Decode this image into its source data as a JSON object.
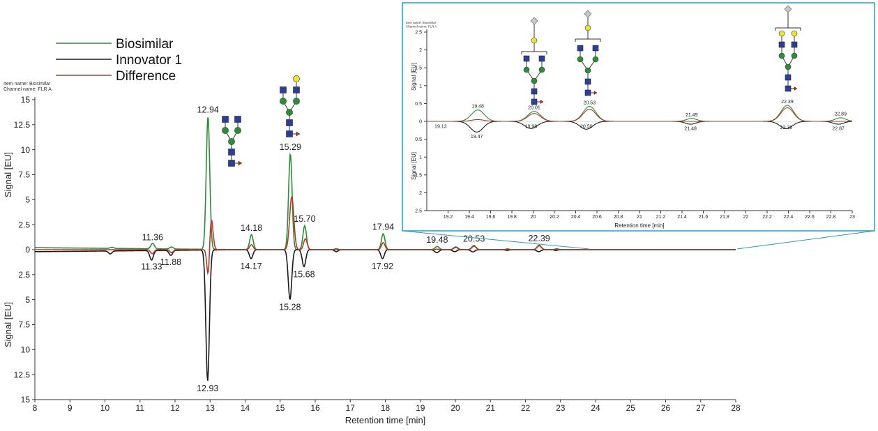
{
  "legend": [
    {
      "label": "Biosimilar",
      "color": "#2e8b3a"
    },
    {
      "label": "Innovator 1",
      "color": "#1a1a1a"
    },
    {
      "label": "Difference",
      "color": "#b23a2a"
    }
  ],
  "colors": {
    "biosimilar": "#2e8b3a",
    "innovator": "#1a1a1a",
    "difference": "#b23a2a",
    "inset_frame": "#2a9ab8",
    "glycan_blue": "#2f3f8f",
    "glycan_green": "#2e8b3a",
    "glycan_yellow": "#f2e03a",
    "glycan_gray": "#c8c8c8",
    "glycan_fucose": "#b0302a"
  },
  "chart_data": [
    {
      "type": "line",
      "header_lines": [
        "Item name: Biosimilar",
        "Channel name: FLR A"
      ],
      "xlabel": "Retention time [min]",
      "ylabel_top": "Signal [EU]",
      "ylabel_bottom": "Signal [EU]",
      "xlim": [
        8,
        28
      ],
      "ylim_top": [
        0,
        15
      ],
      "ylim_bottom": [
        0,
        15
      ],
      "x_ticks": [
        "8",
        "9",
        "10",
        "11",
        "12",
        "13",
        "14",
        "15",
        "16",
        "17",
        "18",
        "19",
        "20",
        "21",
        "22",
        "23",
        "24",
        "25",
        "26",
        "27",
        "28"
      ],
      "y_ticks_top": [
        "0",
        "2.5",
        "5",
        "7.5",
        "10",
        "12.5",
        "15"
      ],
      "y_ticks_bottom": [
        "2.5",
        "5",
        "7.5",
        "10",
        "12.5",
        "15"
      ],
      "series": [
        {
          "name": "Biosimilar",
          "peaks": [
            {
              "x": 10.2,
              "h": 0.12,
              "w": 0.05
            },
            {
              "x": 11.36,
              "h": 0.55,
              "w": 0.05
            },
            {
              "x": 11.9,
              "h": 0.2,
              "w": 0.05
            },
            {
              "x": 12.94,
              "h": 13.3,
              "w": 0.05
            },
            {
              "x": 14.18,
              "h": 1.5,
              "w": 0.05
            },
            {
              "x": 15.29,
              "h": 9.6,
              "w": 0.05
            },
            {
              "x": 15.7,
              "h": 2.4,
              "w": 0.05
            },
            {
              "x": 16.6,
              "h": 0.1,
              "w": 0.05
            },
            {
              "x": 17.94,
              "h": 1.6,
              "w": 0.05
            },
            {
              "x": 19.48,
              "h": 0.32,
              "w": 0.06
            },
            {
              "x": 20.01,
              "h": 0.28,
              "w": 0.06
            },
            {
              "x": 20.53,
              "h": 0.42,
              "w": 0.06
            },
            {
              "x": 21.49,
              "h": 0.08,
              "w": 0.05
            },
            {
              "x": 22.39,
              "h": 0.45,
              "w": 0.06
            },
            {
              "x": 22.89,
              "h": 0.1,
              "w": 0.05
            }
          ]
        },
        {
          "name": "Innovator 1",
          "peaks": [
            {
              "x": 10.15,
              "h": 0.3,
              "w": 0.05
            },
            {
              "x": 11.33,
              "h": 0.95,
              "w": 0.05
            },
            {
              "x": 11.88,
              "h": 0.5,
              "w": 0.05
            },
            {
              "x": 12.93,
              "h": 13.1,
              "w": 0.05
            },
            {
              "x": 14.17,
              "h": 0.9,
              "w": 0.05
            },
            {
              "x": 15.28,
              "h": 5.0,
              "w": 0.05
            },
            {
              "x": 15.68,
              "h": 1.7,
              "w": 0.05
            },
            {
              "x": 16.6,
              "h": 0.2,
              "w": 0.05
            },
            {
              "x": 17.92,
              "h": 0.9,
              "w": 0.05
            },
            {
              "x": 19.47,
              "h": 0.3,
              "w": 0.06
            },
            {
              "x": 19.98,
              "h": 0.2,
              "w": 0.06
            },
            {
              "x": 20.5,
              "h": 0.22,
              "w": 0.06
            },
            {
              "x": 21.48,
              "h": 0.08,
              "w": 0.05
            },
            {
              "x": 22.38,
              "h": 0.2,
              "w": 0.06
            },
            {
              "x": 22.87,
              "h": 0.08,
              "w": 0.05
            }
          ]
        },
        {
          "name": "Difference",
          "peaks": [
            {
              "x": 11.35,
              "h": -0.4,
              "w": 0.05
            },
            {
              "x": 11.9,
              "h": -0.3,
              "w": 0.05
            },
            {
              "x": 12.95,
              "h": -3.1,
              "w": 0.04
            },
            {
              "x": 13.03,
              "h": 3.3,
              "w": 0.05
            },
            {
              "x": 14.18,
              "h": 0.5,
              "w": 0.05
            },
            {
              "x": 15.33,
              "h": 5.3,
              "w": 0.06
            },
            {
              "x": 15.72,
              "h": 1.1,
              "w": 0.05
            },
            {
              "x": 17.94,
              "h": 0.7,
              "w": 0.05
            },
            {
              "x": 19.48,
              "h": 0.05,
              "w": 0.06
            },
            {
              "x": 20.01,
              "h": 0.22,
              "w": 0.06
            },
            {
              "x": 20.53,
              "h": 0.34,
              "w": 0.06
            },
            {
              "x": 22.39,
              "h": 0.38,
              "w": 0.06
            }
          ]
        }
      ],
      "annotations": [
        {
          "text": "11.36",
          "x": 11.36,
          "y": 0.55,
          "side": "above"
        },
        {
          "text": "12.94",
          "x": 12.94,
          "y": 13.3,
          "side": "above"
        },
        {
          "text": "14.18",
          "x": 14.18,
          "y": 1.5,
          "side": "above"
        },
        {
          "text": "15.29",
          "x": 15.29,
          "y": 9.6,
          "side": "above"
        },
        {
          "text": "15.70",
          "x": 15.7,
          "y": 2.4,
          "side": "above"
        },
        {
          "text": "17.94",
          "x": 17.94,
          "y": 1.6,
          "side": "above"
        },
        {
          "text": "19.48",
          "x": 19.48,
          "y": 0.32,
          "side": "above"
        },
        {
          "text": "20.53",
          "x": 20.53,
          "y": 0.42,
          "side": "above"
        },
        {
          "text": "22.39",
          "x": 22.39,
          "y": 0.45,
          "side": "above"
        },
        {
          "text": "11.33",
          "x": 11.33,
          "y": -0.95,
          "side": "below"
        },
        {
          "text": "11.88",
          "x": 11.88,
          "y": -0.5,
          "side": "below"
        },
        {
          "text": "12.93",
          "x": 12.93,
          "y": -13.1,
          "side": "below"
        },
        {
          "text": "14.17",
          "x": 14.17,
          "y": -0.9,
          "side": "below"
        },
        {
          "text": "15.28",
          "x": 15.28,
          "y": -5.0,
          "side": "below"
        },
        {
          "text": "15.68",
          "x": 15.68,
          "y": -1.7,
          "side": "below"
        },
        {
          "text": "17.92",
          "x": 17.92,
          "y": -0.9,
          "side": "below"
        }
      ]
    },
    {
      "type": "line",
      "header_lines": [
        "Item name: Biosimilar",
        "Channel name: FLR A"
      ],
      "xlabel": "Retention time [min]",
      "ylabel_top": "Signal [EU]",
      "ylabel_bottom": "Signal [EU]",
      "xlim": [
        19,
        23
      ],
      "ylim_top": [
        0,
        2.5
      ],
      "ylim_bottom": [
        0,
        2.5
      ],
      "x_ticks": [
        "19.2",
        "19.4",
        "19.6",
        "19.8",
        "20",
        "20.2",
        "20.4",
        "20.6",
        "20.8",
        "21",
        "21.2",
        "21.4",
        "21.6",
        "21.8",
        "22",
        "22.2",
        "22.4",
        "22.6",
        "22.8",
        "23"
      ],
      "y_ticks_top": [
        "0",
        "0.5",
        "1",
        "1.5",
        "2",
        "2.5"
      ],
      "y_ticks_bottom": [
        "0.5",
        "1",
        "1.5",
        "2",
        "2.5"
      ],
      "annotations": [
        {
          "text": "19.48",
          "x": 19.48,
          "y": 0.32,
          "side": "above"
        },
        {
          "text": "20.01",
          "x": 20.01,
          "y": 0.28,
          "side": "above"
        },
        {
          "text": "20.53",
          "x": 20.53,
          "y": 0.42,
          "side": "above"
        },
        {
          "text": "21.49",
          "x": 21.49,
          "y": 0.08,
          "side": "above"
        },
        {
          "text": "22.39",
          "x": 22.39,
          "y": 0.45,
          "side": "above"
        },
        {
          "text": "22.89",
          "x": 22.89,
          "y": 0.1,
          "side": "above"
        },
        {
          "text": "19.13",
          "x": 19.13,
          "y": -0.02,
          "side": "below"
        },
        {
          "text": "19.47",
          "x": 19.47,
          "y": -0.3,
          "side": "below"
        },
        {
          "text": "19.98",
          "x": 19.98,
          "y": -0.02,
          "side": "below"
        },
        {
          "text": "20.50",
          "x": 20.5,
          "y": -0.02,
          "side": "below"
        },
        {
          "text": "21.48",
          "x": 21.48,
          "y": -0.08,
          "side": "below"
        },
        {
          "text": "22.38",
          "x": 22.38,
          "y": -0.05,
          "side": "below"
        },
        {
          "text": "22.87",
          "x": 22.87,
          "y": -0.08,
          "side": "below"
        }
      ]
    }
  ]
}
